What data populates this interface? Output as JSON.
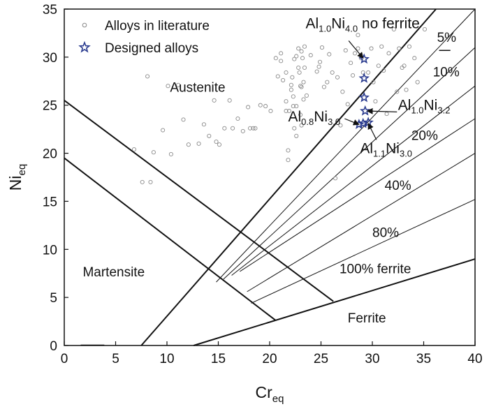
{
  "chart_data": {
    "type": "scatter",
    "title": "",
    "xlabel": {
      "main": "Cr",
      "sub": "eq"
    },
    "ylabel": {
      "main": "Ni",
      "sub": "eq"
    },
    "xlim": [
      0,
      40
    ],
    "ylim": [
      0,
      35
    ],
    "xticks": [
      0,
      5,
      10,
      15,
      20,
      25,
      30,
      35,
      40
    ],
    "yticks": [
      0,
      5,
      10,
      15,
      20,
      25,
      30,
      35
    ],
    "grid": false,
    "legend": {
      "position": "top-left",
      "entries": [
        {
          "label": "Alloys in literature",
          "marker": "open-circle",
          "color": "#888888"
        },
        {
          "label": "Designed alloys",
          "marker": "star",
          "color": "#2a3b8f"
        }
      ]
    },
    "series": [
      {
        "name": "Alloys in literature",
        "marker": "open-circle",
        "points": [
          [
            6.8,
            20.4
          ],
          [
            7.6,
            17.0
          ],
          [
            8.1,
            28.0
          ],
          [
            8.4,
            17.0
          ],
          [
            8.7,
            20.1
          ],
          [
            9.6,
            22.4
          ],
          [
            10.1,
            27.0
          ],
          [
            10.4,
            19.9
          ],
          [
            11.1,
            27.1
          ],
          [
            11.6,
            23.5
          ],
          [
            12.1,
            20.9
          ],
          [
            13.1,
            21.0
          ],
          [
            13.6,
            23.0
          ],
          [
            14.1,
            21.8
          ],
          [
            14.6,
            25.5
          ],
          [
            14.8,
            21.2
          ],
          [
            15.1,
            20.9
          ],
          [
            15.6,
            22.6
          ],
          [
            16.1,
            25.5
          ],
          [
            16.4,
            22.6
          ],
          [
            16.9,
            23.6
          ],
          [
            17.4,
            22.3
          ],
          [
            17.9,
            24.8
          ],
          [
            18.1,
            22.6
          ],
          [
            18.4,
            22.6
          ],
          [
            18.6,
            22.6
          ],
          [
            19.1,
            25.0
          ],
          [
            19.6,
            24.9
          ],
          [
            20.1,
            24.4
          ],
          [
            20.6,
            29.9
          ],
          [
            20.8,
            28.0
          ],
          [
            21.1,
            30.4
          ],
          [
            21.1,
            29.6
          ],
          [
            21.3,
            27.6
          ],
          [
            21.6,
            25.4
          ],
          [
            21.6,
            24.4
          ],
          [
            21.6,
            28.4
          ],
          [
            21.8,
            20.3
          ],
          [
            21.8,
            19.3
          ],
          [
            21.9,
            24.4
          ],
          [
            22.1,
            26.6
          ],
          [
            22.1,
            27.1
          ],
          [
            22.2,
            27.9
          ],
          [
            22.3,
            25.9
          ],
          [
            22.4,
            22.6
          ],
          [
            22.6,
            21.8
          ],
          [
            22.6,
            30.1
          ],
          [
            22.6,
            24.9
          ],
          [
            22.8,
            30.9
          ],
          [
            22.8,
            28.9
          ],
          [
            22.9,
            28.4
          ],
          [
            23.0,
            27.0
          ],
          [
            23.0,
            24.0
          ],
          [
            23.1,
            22.9
          ],
          [
            23.1,
            30.6
          ],
          [
            23.2,
            29.9
          ],
          [
            23.3,
            27.4
          ],
          [
            23.3,
            25.6
          ],
          [
            23.4,
            28.9
          ],
          [
            23.4,
            31.1
          ],
          [
            24.6,
            28.5
          ],
          [
            24.8,
            29.0
          ],
          [
            24.9,
            29.5
          ],
          [
            25.1,
            31.0
          ],
          [
            25.3,
            26.9
          ],
          [
            25.6,
            27.4
          ],
          [
            25.8,
            30.3
          ],
          [
            26.1,
            28.4
          ],
          [
            26.4,
            17.4
          ],
          [
            26.6,
            27.9
          ],
          [
            26.9,
            22.9
          ],
          [
            27.1,
            26.4
          ],
          [
            27.4,
            30.7
          ],
          [
            27.6,
            25.1
          ],
          [
            27.9,
            29.4
          ],
          [
            28.1,
            28.1
          ],
          [
            28.3,
            30.4
          ],
          [
            28.6,
            32.3
          ],
          [
            28.9,
            29.9
          ],
          [
            29.1,
            28.4
          ],
          [
            29.6,
            28.4
          ],
          [
            29.9,
            30.9
          ],
          [
            30.1,
            27.4
          ],
          [
            30.3,
            25.4
          ],
          [
            30.6,
            29.1
          ],
          [
            30.9,
            31.1
          ],
          [
            31.1,
            28.6
          ],
          [
            31.4,
            24.1
          ],
          [
            31.6,
            30.4
          ],
          [
            32.1,
            32.9
          ],
          [
            32.4,
            26.4
          ],
          [
            32.6,
            30.9
          ],
          [
            32.9,
            28.9
          ],
          [
            33.1,
            29.1
          ],
          [
            33.3,
            26.6
          ],
          [
            33.6,
            31.1
          ],
          [
            34.1,
            29.9
          ],
          [
            34.4,
            27.4
          ],
          [
            35.1,
            32.9
          ],
          [
            28.6,
            30.9
          ],
          [
            24.0,
            30.2
          ],
          [
            23.6,
            26.0
          ],
          [
            23.1,
            26.9
          ],
          [
            22.4,
            29.8
          ],
          [
            22.3,
            24.9
          ]
        ]
      },
      {
        "name": "Designed alloys",
        "marker": "star",
        "points": [
          [
            29.2,
            29.8
          ],
          [
            29.2,
            27.8
          ],
          [
            29.2,
            25.8
          ],
          [
            29.3,
            24.4
          ],
          [
            29.6,
            23.2
          ],
          [
            28.7,
            23.0
          ],
          [
            29.1,
            23.1
          ]
        ]
      }
    ],
    "boundary_lines": [
      {
        "from": [
          0,
          25.5
        ],
        "to": [
          26.2,
          4.6
        ],
        "width": 2
      },
      {
        "from": [
          0,
          19.5
        ],
        "to": [
          20.6,
          2.6
        ],
        "width": 2
      },
      {
        "from": [
          7.5,
          0
        ],
        "to": [
          36.2,
          35
        ],
        "width": 2
      },
      {
        "from": [
          12.6,
          0
        ],
        "to": [
          40,
          9.0
        ],
        "width": 2
      },
      {
        "from": [
          14.8,
          6.6
        ],
        "to": [
          40,
          35
        ],
        "width": 1
      },
      {
        "from": [
          15.5,
          6.9
        ],
        "to": [
          40,
          31.0
        ],
        "width": 1
      },
      {
        "from": [
          16.3,
          7.3
        ],
        "to": [
          40,
          27.0
        ],
        "width": 1
      },
      {
        "from": [
          17.1,
          7.7
        ],
        "to": [
          40,
          23.6
        ],
        "width": 1
      },
      {
        "from": [
          17.8,
          5.6
        ],
        "to": [
          40,
          20.0
        ],
        "width": 1
      },
      {
        "from": [
          18.2,
          4.4
        ],
        "to": [
          40,
          15.2
        ],
        "width": 1
      }
    ],
    "region_labels": [
      {
        "text": "Austenite",
        "at": [
          10.3,
          26.4
        ]
      },
      {
        "text": "Martensite",
        "at": [
          1.8,
          7.2
        ]
      },
      {
        "text": "Ferrite",
        "at": [
          27.6,
          2.4
        ]
      }
    ],
    "ferrite_labels": [
      {
        "text": "5%",
        "at": [
          36.3,
          31.6
        ]
      },
      {
        "text": "10%",
        "at": [
          35.9,
          28.0
        ]
      },
      {
        "text": "20%",
        "at": [
          33.8,
          21.4
        ]
      },
      {
        "text": "40%",
        "at": [
          31.2,
          16.2
        ]
      },
      {
        "text": "80%",
        "at": [
          30.0,
          11.3
        ]
      },
      {
        "text": "100% ferrite",
        "at": [
          26.8,
          7.5
        ]
      }
    ],
    "alloy_annotations": [
      {
        "label": "Al",
        "sub1": "1.0",
        "mid": "Ni",
        "sub2": "4.0",
        "suffix": " no ferrite",
        "text_at": [
          23.5,
          33.0
        ],
        "arrow_from": [
          27.7,
          31.7
        ],
        "arrow_to": [
          29.1,
          29.9
        ]
      },
      {
        "label": "Al",
        "sub1": "1.0",
        "mid": "Ni",
        "sub2": "3.2",
        "suffix": "",
        "text_at": [
          32.5,
          24.5
        ],
        "arrow_from": [
          32.4,
          24.3
        ],
        "arrow_to": [
          29.5,
          24.4
        ]
      },
      {
        "label": "Al",
        "sub1": "0.8",
        "mid": "Ni",
        "sub2": "3.0",
        "suffix": "",
        "text_at": [
          21.8,
          23.3
        ],
        "arrow_from": [
          27.3,
          23.6
        ],
        "arrow_to": [
          28.7,
          23.0
        ]
      },
      {
        "label": "Al",
        "sub1": "1.1",
        "mid": "Ni",
        "sub2": "3.0",
        "suffix": "",
        "text_at": [
          28.8,
          20.0
        ],
        "arrow_from": [
          30.4,
          21.4
        ],
        "arrow_to": [
          29.6,
          23.1
        ]
      }
    ],
    "stub_line": {
      "from": [
        1.6,
        0.05
      ],
      "to": [
        3.9,
        0.05
      ]
    },
    "dash_marker": {
      "from": [
        36.5,
        30.7
      ],
      "to": [
        37.6,
        30.7
      ]
    }
  }
}
